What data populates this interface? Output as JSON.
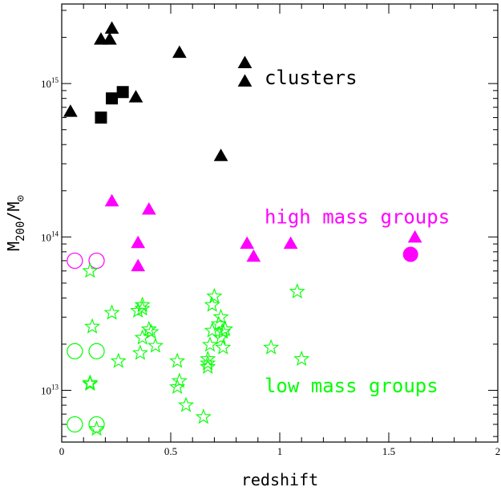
{
  "chart_data": {
    "type": "scatter",
    "xlabel": "redshift",
    "ylabel_main": "M",
    "ylabel_sub1": "200",
    "ylabel_slash": "/M",
    "ylabel_sub2": "⊙",
    "xlim": [
      0,
      2
    ],
    "ylim": [
      4600000000000.0,
      3300000000000000.0
    ],
    "y_scale": "log",
    "grid": false,
    "legend": "none",
    "x_ticks": [
      {
        "value": 0,
        "label": "0"
      },
      {
        "value": 0.5,
        "label": "0.5"
      },
      {
        "value": 1,
        "label": "1"
      },
      {
        "value": 1.5,
        "label": "1.5"
      },
      {
        "value": 2,
        "label": "2"
      }
    ],
    "y_ticks": [
      {
        "value": 10000000000000.0,
        "base": "10",
        "exp": "13"
      },
      {
        "value": 100000000000000.0,
        "base": "10",
        "exp": "14"
      },
      {
        "value": 1000000000000000.0,
        "base": "10",
        "exp": "15"
      }
    ],
    "annotations": [
      {
        "text": "clusters",
        "x": 0.93,
        "y": 1050000000000000.0,
        "color": "#000000"
      },
      {
        "text": "high mass groups",
        "x": 0.93,
        "y": 130000000000000.0,
        "color": "#ff00ff"
      },
      {
        "text": "low mass groups",
        "x": 0.93,
        "y": 10300000000000.0,
        "color": "#00ff00"
      }
    ],
    "series": [
      {
        "color": "#000000",
        "marker": "triangle",
        "filled": true,
        "points": [
          [
            0.04,
            660000000000000.0
          ],
          [
            0.18,
            1950000000000000.0
          ],
          [
            0.22,
            1950000000000000.0
          ],
          [
            0.23,
            2300000000000000.0
          ],
          [
            0.34,
            820000000000000.0
          ],
          [
            0.54,
            1600000000000000.0
          ],
          [
            0.73,
            340000000000000.0
          ],
          [
            0.84,
            1370000000000000.0
          ],
          [
            0.84,
            1040000000000000.0
          ]
        ]
      },
      {
        "color": "#000000",
        "marker": "square",
        "filled": true,
        "points": [
          [
            0.18,
            600000000000000.0
          ],
          [
            0.23,
            800000000000000.0
          ],
          [
            0.28,
            880000000000000.0
          ]
        ]
      },
      {
        "color": "#ff00ff",
        "marker": "triangle",
        "filled": true,
        "points": [
          [
            0.23,
            172000000000000.0
          ],
          [
            0.35,
            92000000000000.0
          ],
          [
            0.35,
            65000000000000.0
          ],
          [
            0.4,
            152000000000000.0
          ],
          [
            0.85,
            91000000000000.0
          ],
          [
            0.88,
            75000000000000.0
          ],
          [
            1.05,
            91000000000000.0
          ],
          [
            1.62,
            100000000000000.0
          ]
        ]
      },
      {
        "color": "#ff00ff",
        "marker": "circle",
        "filled": true,
        "points": [
          [
            1.6,
            77000000000000.0
          ]
        ]
      },
      {
        "color": "#ff00ff",
        "marker": "circle",
        "filled": false,
        "points": [
          [
            0.06,
            70000000000000.0
          ],
          [
            0.16,
            70000000000000.0
          ]
        ]
      },
      {
        "color": "#00ff00",
        "marker": "circle",
        "filled": false,
        "points": [
          [
            0.06,
            18000000000000.0
          ],
          [
            0.16,
            18000000000000.0
          ],
          [
            0.06,
            6000000000000.0
          ],
          [
            0.16,
            6000000000000.0
          ]
        ]
      },
      {
        "color": "#00ff00",
        "marker": "star",
        "filled": false,
        "points": [
          [
            0.13,
            60000000000000.0
          ],
          [
            0.14,
            26000000000000.0
          ],
          [
            0.13,
            11000000000000.0
          ],
          [
            0.13,
            11200000000000.0
          ],
          [
            0.16,
            5600000000000.0
          ],
          [
            0.23,
            32000000000000.0
          ],
          [
            0.26,
            15500000000000.0
          ],
          [
            0.35,
            33000000000000.0
          ],
          [
            0.37,
            36000000000000.0
          ],
          [
            0.37,
            34000000000000.0
          ],
          [
            0.37,
            22000000000000.0
          ],
          [
            0.36,
            17500000000000.0
          ],
          [
            0.4,
            25000000000000.0
          ],
          [
            0.43,
            19500000000000.0
          ],
          [
            0.41,
            24000000000000.0
          ],
          [
            0.53,
            15500000000000.0
          ],
          [
            0.54,
            11500000000000.0
          ],
          [
            0.53,
            10500000000000.0
          ],
          [
            0.57,
            8000000000000.0
          ],
          [
            0.65,
            6700000000000.0
          ],
          [
            0.67,
            16000000000000.0
          ],
          [
            0.67,
            15000000000000.0
          ],
          [
            0.67,
            14200000000000.0
          ],
          [
            0.68,
            19800000000000.0
          ],
          [
            0.69,
            24500000000000.0
          ],
          [
            0.7,
            41000000000000.0
          ],
          [
            0.69,
            36000000000000.0
          ],
          [
            0.73,
            30000000000000.0
          ],
          [
            0.74,
            24000000000000.0
          ],
          [
            0.73,
            22000000000000.0
          ],
          [
            0.74,
            19000000000000.0
          ],
          [
            0.72,
            27000000000000.0
          ],
          [
            0.75,
            25000000000000.0
          ],
          [
            0.96,
            19000000000000.0
          ],
          [
            1.08,
            44000000000000.0
          ],
          [
            1.1,
            16000000000000.0
          ]
        ]
      }
    ]
  }
}
